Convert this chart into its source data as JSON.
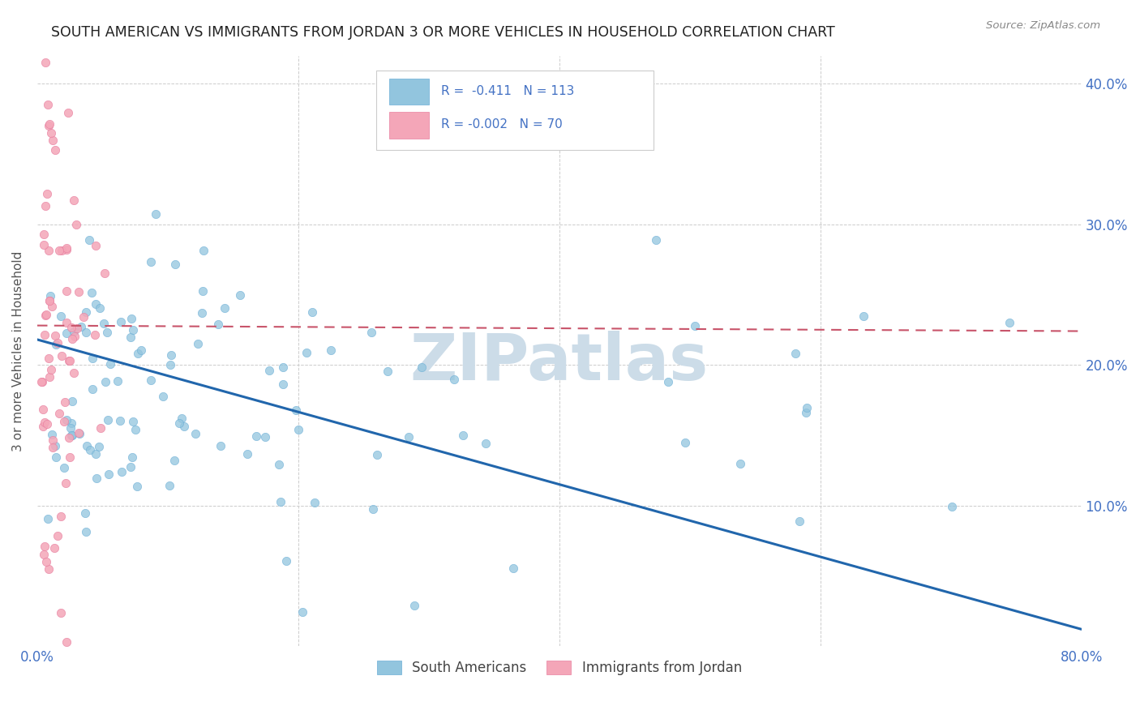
{
  "title": "SOUTH AMERICAN VS IMMIGRANTS FROM JORDAN 3 OR MORE VEHICLES IN HOUSEHOLD CORRELATION CHART",
  "source": "Source: ZipAtlas.com",
  "ylabel": "3 or more Vehicles in Household",
  "blue_color": "#92c5de",
  "blue_edge_color": "#6baed6",
  "pink_color": "#f4a6b8",
  "pink_edge_color": "#e87fa0",
  "blue_line_color": "#2166ac",
  "pink_line_color": "#c8546a",
  "watermark_text": "ZIPatlas",
  "watermark_color": "#ccdce8",
  "background_color": "#ffffff",
  "grid_color": "#cccccc",
  "title_color": "#222222",
  "axis_label_color": "#4472c4",
  "ylabel_color": "#555555",
  "blue_R": -0.411,
  "blue_N": 113,
  "pink_R": -0.002,
  "pink_N": 70,
  "xmin": 0.0,
  "xmax": 0.8,
  "ymin": 0.0,
  "ymax": 0.42,
  "blue_trend_x0": 0.0,
  "blue_trend_y0": 0.218,
  "blue_trend_x1": 0.8,
  "blue_trend_y1": 0.012,
  "pink_trend_x0": 0.0,
  "pink_trend_y0": 0.228,
  "pink_trend_x1": 0.8,
  "pink_trend_y1": 0.224
}
